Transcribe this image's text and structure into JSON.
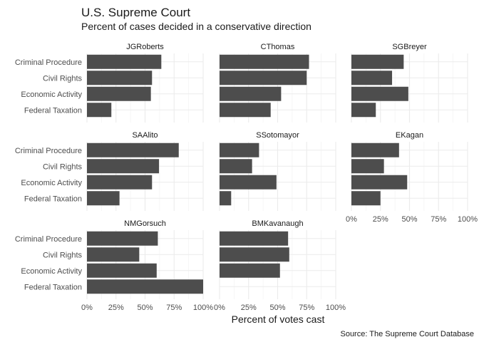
{
  "chart_data": {
    "type": "bar",
    "orientation": "horizontal",
    "title": "U.S. Supreme Court",
    "subtitle": "Percent of cases decided in a conservative direction",
    "xlabel": "Percent of votes cast",
    "ylabel": "",
    "caption": "Source: The Supreme Court Database",
    "categories": [
      "Criminal Procedure",
      "Civil Rights",
      "Economic Activity",
      "Federal Taxation"
    ],
    "xlim": [
      0,
      100
    ],
    "xticks": [
      "0%",
      "25%",
      "50%",
      "75%",
      "100%"
    ],
    "grid": true,
    "bar_color": "#4d4d4d",
    "panels": [
      {
        "name": "JGRoberts",
        "values": [
          64,
          56,
          55,
          21
        ]
      },
      {
        "name": "CThomas",
        "values": [
          77,
          75,
          53,
          44
        ]
      },
      {
        "name": "SGBreyer",
        "values": [
          45,
          35,
          49,
          21
        ]
      },
      {
        "name": "SAAlito",
        "values": [
          79,
          62,
          56,
          28
        ]
      },
      {
        "name": "SSotomayor",
        "values": [
          34,
          28,
          49,
          10
        ]
      },
      {
        "name": "EKagan",
        "values": [
          41,
          28,
          48,
          25
        ]
      },
      {
        "name": "NMGorsuch",
        "values": [
          61,
          45,
          60,
          100
        ]
      },
      {
        "name": "BMKavanaugh",
        "values": [
          59,
          60,
          52,
          null
        ]
      }
    ]
  }
}
